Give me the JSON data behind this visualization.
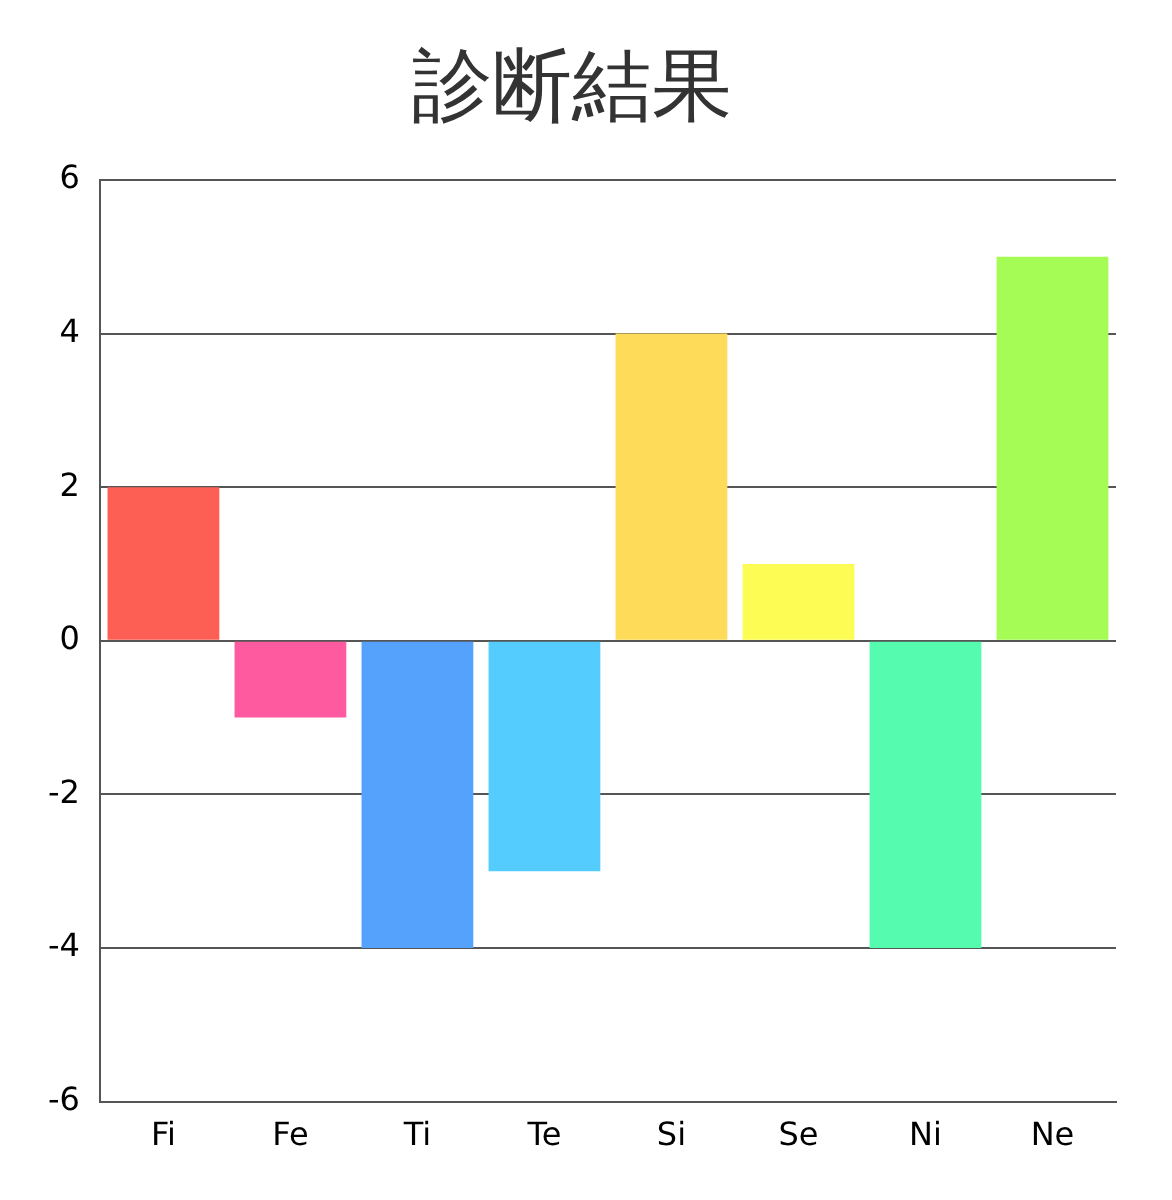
{
  "chart_data": {
    "type": "bar",
    "title": "診断結果",
    "categories": [
      "Fi",
      "Fe",
      "Ti",
      "Te",
      "Si",
      "Se",
      "Ni",
      "Ne"
    ],
    "values": [
      2,
      -1,
      -4,
      -3,
      4,
      1,
      -4,
      5
    ],
    "colors": [
      "#fe5f55",
      "#fe5aa0",
      "#55a2fd",
      "#55ccfe",
      "#fedc5a",
      "#fcfc55",
      "#55fcb0",
      "#a5fc55"
    ],
    "ylim": [
      -6,
      6
    ],
    "yticks": [
      -6,
      -4,
      -2,
      0,
      2,
      4,
      6
    ],
    "grid": "y",
    "legend": false
  }
}
